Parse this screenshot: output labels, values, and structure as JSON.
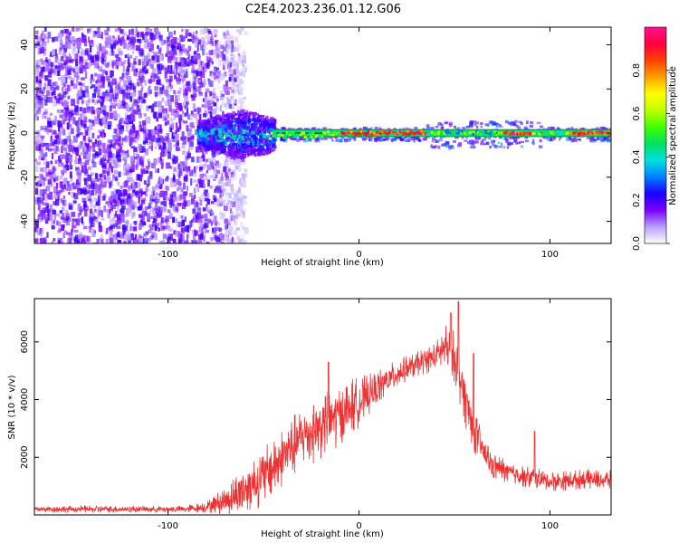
{
  "figure": {
    "title": "C2E4.2023.236.01.12.G06"
  },
  "chart_data": [
    {
      "type": "heatmap",
      "xlabel": "Height of straight line (km)",
      "ylabel": "Frequency (Hz)",
      "xlim": [
        -170,
        132
      ],
      "ylim": [
        -50,
        48
      ],
      "x_ticks": [
        -100,
        0,
        100
      ],
      "y_ticks": [
        -40,
        -20,
        0,
        20,
        40
      ],
      "grid": false,
      "colorbar": {
        "label": "Normalized spectral amplitude",
        "range": [
          0.0,
          1.0
        ],
        "ticks": [
          0.0,
          0.2,
          0.4,
          0.6,
          0.8
        ],
        "colors": [
          "#ffffff",
          "#b8a0ff",
          "#7a00ff",
          "#1a00ff",
          "#0080ff",
          "#00e0e0",
          "#00e060",
          "#40ff00",
          "#c0ff00",
          "#ffff00",
          "#ffa000",
          "#ff4000",
          "#ff0040",
          "#ff1090"
        ]
      },
      "features": {
        "noise_band_x": [
          -170,
          -70
        ],
        "transition_x": [
          -85,
          -45
        ],
        "carrier_line_x": [
          -45,
          132
        ],
        "carrier_frequency_hz": 0,
        "high_amplitude_segments": [
          [
            -10,
            35
          ],
          [
            75,
            90
          ],
          [
            110,
            132
          ]
        ]
      }
    },
    {
      "type": "line",
      "xlabel": "Height of straight line (km)",
      "ylabel": "SNR (10 * v/v)",
      "xlim": [
        -170,
        132
      ],
      "ylim": [
        0,
        7500
      ],
      "x_ticks": [
        -100,
        0,
        100
      ],
      "y_ticks": [
        2000,
        4000,
        6000
      ],
      "grid": false,
      "series": [
        {
          "color": "#ee3030",
          "x": [
            -170,
            -150,
            -130,
            -110,
            -90,
            -80,
            -70,
            -60,
            -50,
            -40,
            -30,
            -20,
            -10,
            0,
            10,
            20,
            30,
            40,
            45,
            50,
            55,
            60,
            65,
            70,
            80,
            90,
            100,
            110,
            120,
            132
          ],
          "values": [
            200,
            200,
            200,
            200,
            200,
            280,
            500,
            900,
            1300,
            2000,
            2700,
            3100,
            3500,
            3900,
            4400,
            4900,
            5200,
            5500,
            5800,
            5500,
            4200,
            3000,
            2200,
            1700,
            1450,
            1300,
            1150,
            1200,
            1250,
            1200
          ],
          "noise_amplitude": [
            120,
            120,
            120,
            120,
            120,
            200,
            500,
            900,
            1000,
            1100,
            1100,
            1200,
            1100,
            900,
            600,
            500,
            450,
            500,
            800,
            900,
            1000,
            800,
            600,
            500,
            400,
            400,
            350,
            350,
            350,
            350
          ],
          "spikes": [
            [
              -16,
              5300
            ],
            [
              52,
              7400
            ],
            [
              48,
              7000
            ],
            [
              60,
              5600
            ],
            [
              92,
              2900
            ]
          ]
        }
      ]
    }
  ]
}
